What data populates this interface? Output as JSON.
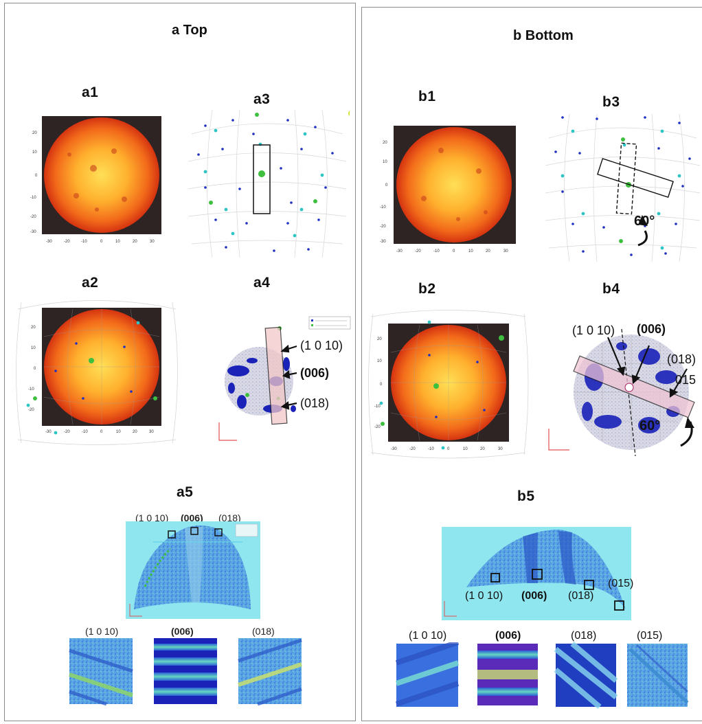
{
  "panel_a": {
    "title": "a Top",
    "labels": {
      "a1": "a1",
      "a2": "a2",
      "a3": "a3",
      "a4": "a4",
      "a5": "a5"
    },
    "a4_annotations": [
      "(1 0 10)",
      "(006)",
      "(018)"
    ],
    "a5_planes": [
      "(1 0 10)",
      "(006)",
      "(018)"
    ],
    "a5_bottom": [
      "(1 0 10)",
      "(006)",
      "(018)"
    ]
  },
  "panel_b": {
    "title": "b Bottom",
    "labels": {
      "b1": "b1",
      "b2": "b2",
      "b3": "b3",
      "b4": "b4",
      "b5": "b5"
    },
    "rotation": "60°",
    "rotation_b4": "60°",
    "b4_annotations": [
      "(1 0 10)",
      "(006)",
      "(018)",
      "015"
    ],
    "b5_planes": [
      "(1 0 10)",
      "(006)",
      "(018)",
      "(015)"
    ],
    "b5_bottom": [
      "(1 0 10)",
      "(006)",
      "(018)",
      "(015)"
    ]
  },
  "colors": {
    "heat_dark": "#2e2424",
    "heat_core": "#ffd24a",
    "heat_edge": "#e23a10",
    "pole_green": "#3fbf3f",
    "pole_cyan": "#2ec4c4",
    "pole_blue": "#1f2fbf",
    "map_cyan": "#90e6ee",
    "map_blue": "#3a63c9"
  },
  "icons": [
    "arrow-icon",
    "rotation-arrow-icon"
  ]
}
